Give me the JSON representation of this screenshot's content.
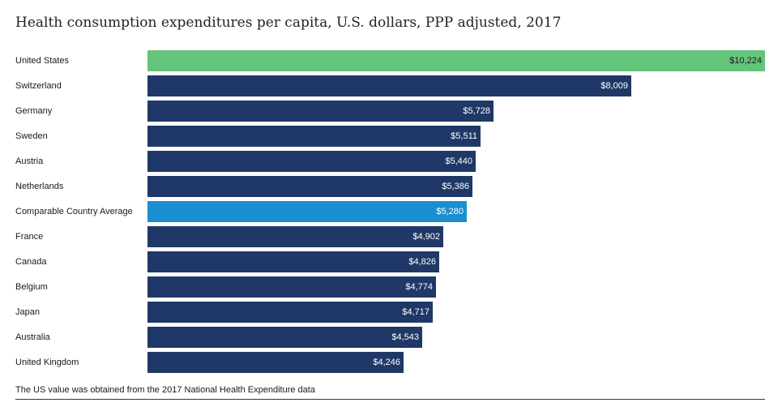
{
  "chart_data": {
    "type": "bar",
    "orientation": "horizontal",
    "title": "Health consumption expenditures per capita, U.S. dollars, PPP adjusted, 2017",
    "categories": [
      "United States",
      "Switzerland",
      "Germany",
      "Sweden",
      "Austria",
      "Netherlands",
      "Comparable Country Average",
      "France",
      "Canada",
      "Belgium",
      "Japan",
      "Australia",
      "United Kingdom"
    ],
    "values": [
      10224,
      8009,
      5728,
      5511,
      5440,
      5386,
      5280,
      4902,
      4826,
      4774,
      4717,
      4543,
      4246
    ],
    "value_labels": [
      "$10,224",
      "$8,009",
      "$5,728",
      "$5,511",
      "$5,440",
      "$5,386",
      "$5,280",
      "$4,902",
      "$4,826",
      "$4,774",
      "$4,717",
      "$4,543",
      "$4,246"
    ],
    "bar_colors": [
      "#63c47a",
      "#1f3867",
      "#1f3867",
      "#1f3867",
      "#1f3867",
      "#1f3867",
      "#1b8ed0",
      "#1f3867",
      "#1f3867",
      "#1f3867",
      "#1f3867",
      "#1f3867",
      "#1f3867"
    ],
    "xlim": [
      0,
      10224
    ],
    "grid": false,
    "legend": "none"
  },
  "footnote": "The US value was obtained from the 2017 National Health Expenditure data"
}
